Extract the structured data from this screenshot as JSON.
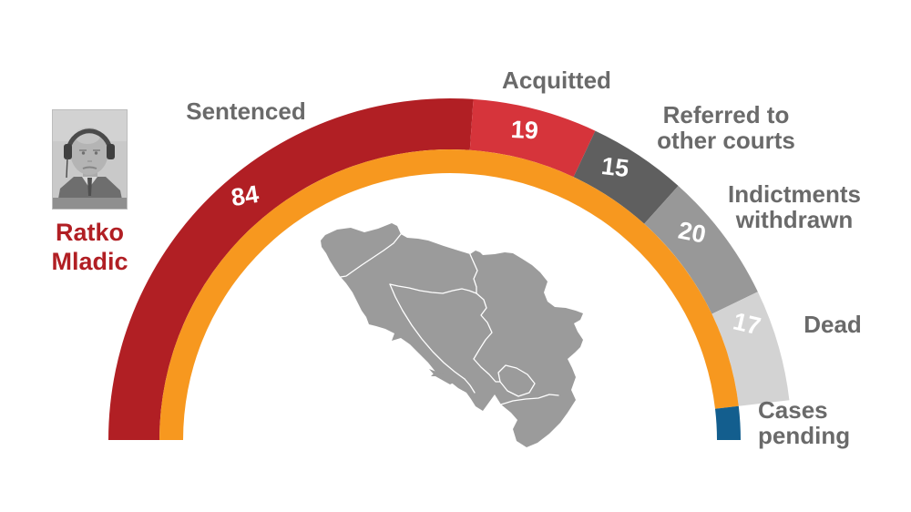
{
  "page": {
    "background": "#FFFFFF"
  },
  "person": {
    "name": "Ratko Mladic",
    "name_color": "#B11F24",
    "photo_icon": "grayscale courtroom photo of bald man wearing headphones"
  },
  "map": {
    "name": "former-yugoslavia-map",
    "fill": "#9B9B9B",
    "internal_border_color": "#FFFFFF"
  },
  "chart_data": {
    "type": "donut",
    "subtype": "semicircle-gauge",
    "arc_span_degrees": 180,
    "total": 161,
    "legend_position": "around-arc",
    "inner_ring": {
      "color": "#F7981F"
    },
    "value_label_color": "#FFFFFF",
    "category_label_color": "#6A6A6A",
    "categories": [
      "Sentenced",
      "Acquitted",
      "Referred to other courts",
      "Indictments withdrawn",
      "Dead",
      "Cases pending"
    ],
    "segments": [
      {
        "label": "Sentenced",
        "value": 84,
        "color": "#B11F24",
        "band": "outer",
        "show_value": true
      },
      {
        "label": "Acquitted",
        "value": 19,
        "color": "#D6343B",
        "band": "outer",
        "show_value": true
      },
      {
        "label": "Referred to other courts",
        "value": 15,
        "color": "#5F5F5F",
        "band": "outer",
        "show_value": true
      },
      {
        "label": "Indictments withdrawn",
        "value": 20,
        "color": "#989898",
        "band": "outer",
        "show_value": true
      },
      {
        "label": "Dead",
        "value": 17,
        "color": "#D3D3D3",
        "band": "outer",
        "show_value": true
      },
      {
        "label": "Cases pending",
        "value": 6,
        "estimated": true,
        "color": "#135E8E",
        "band": "inner",
        "show_value": false
      }
    ]
  }
}
